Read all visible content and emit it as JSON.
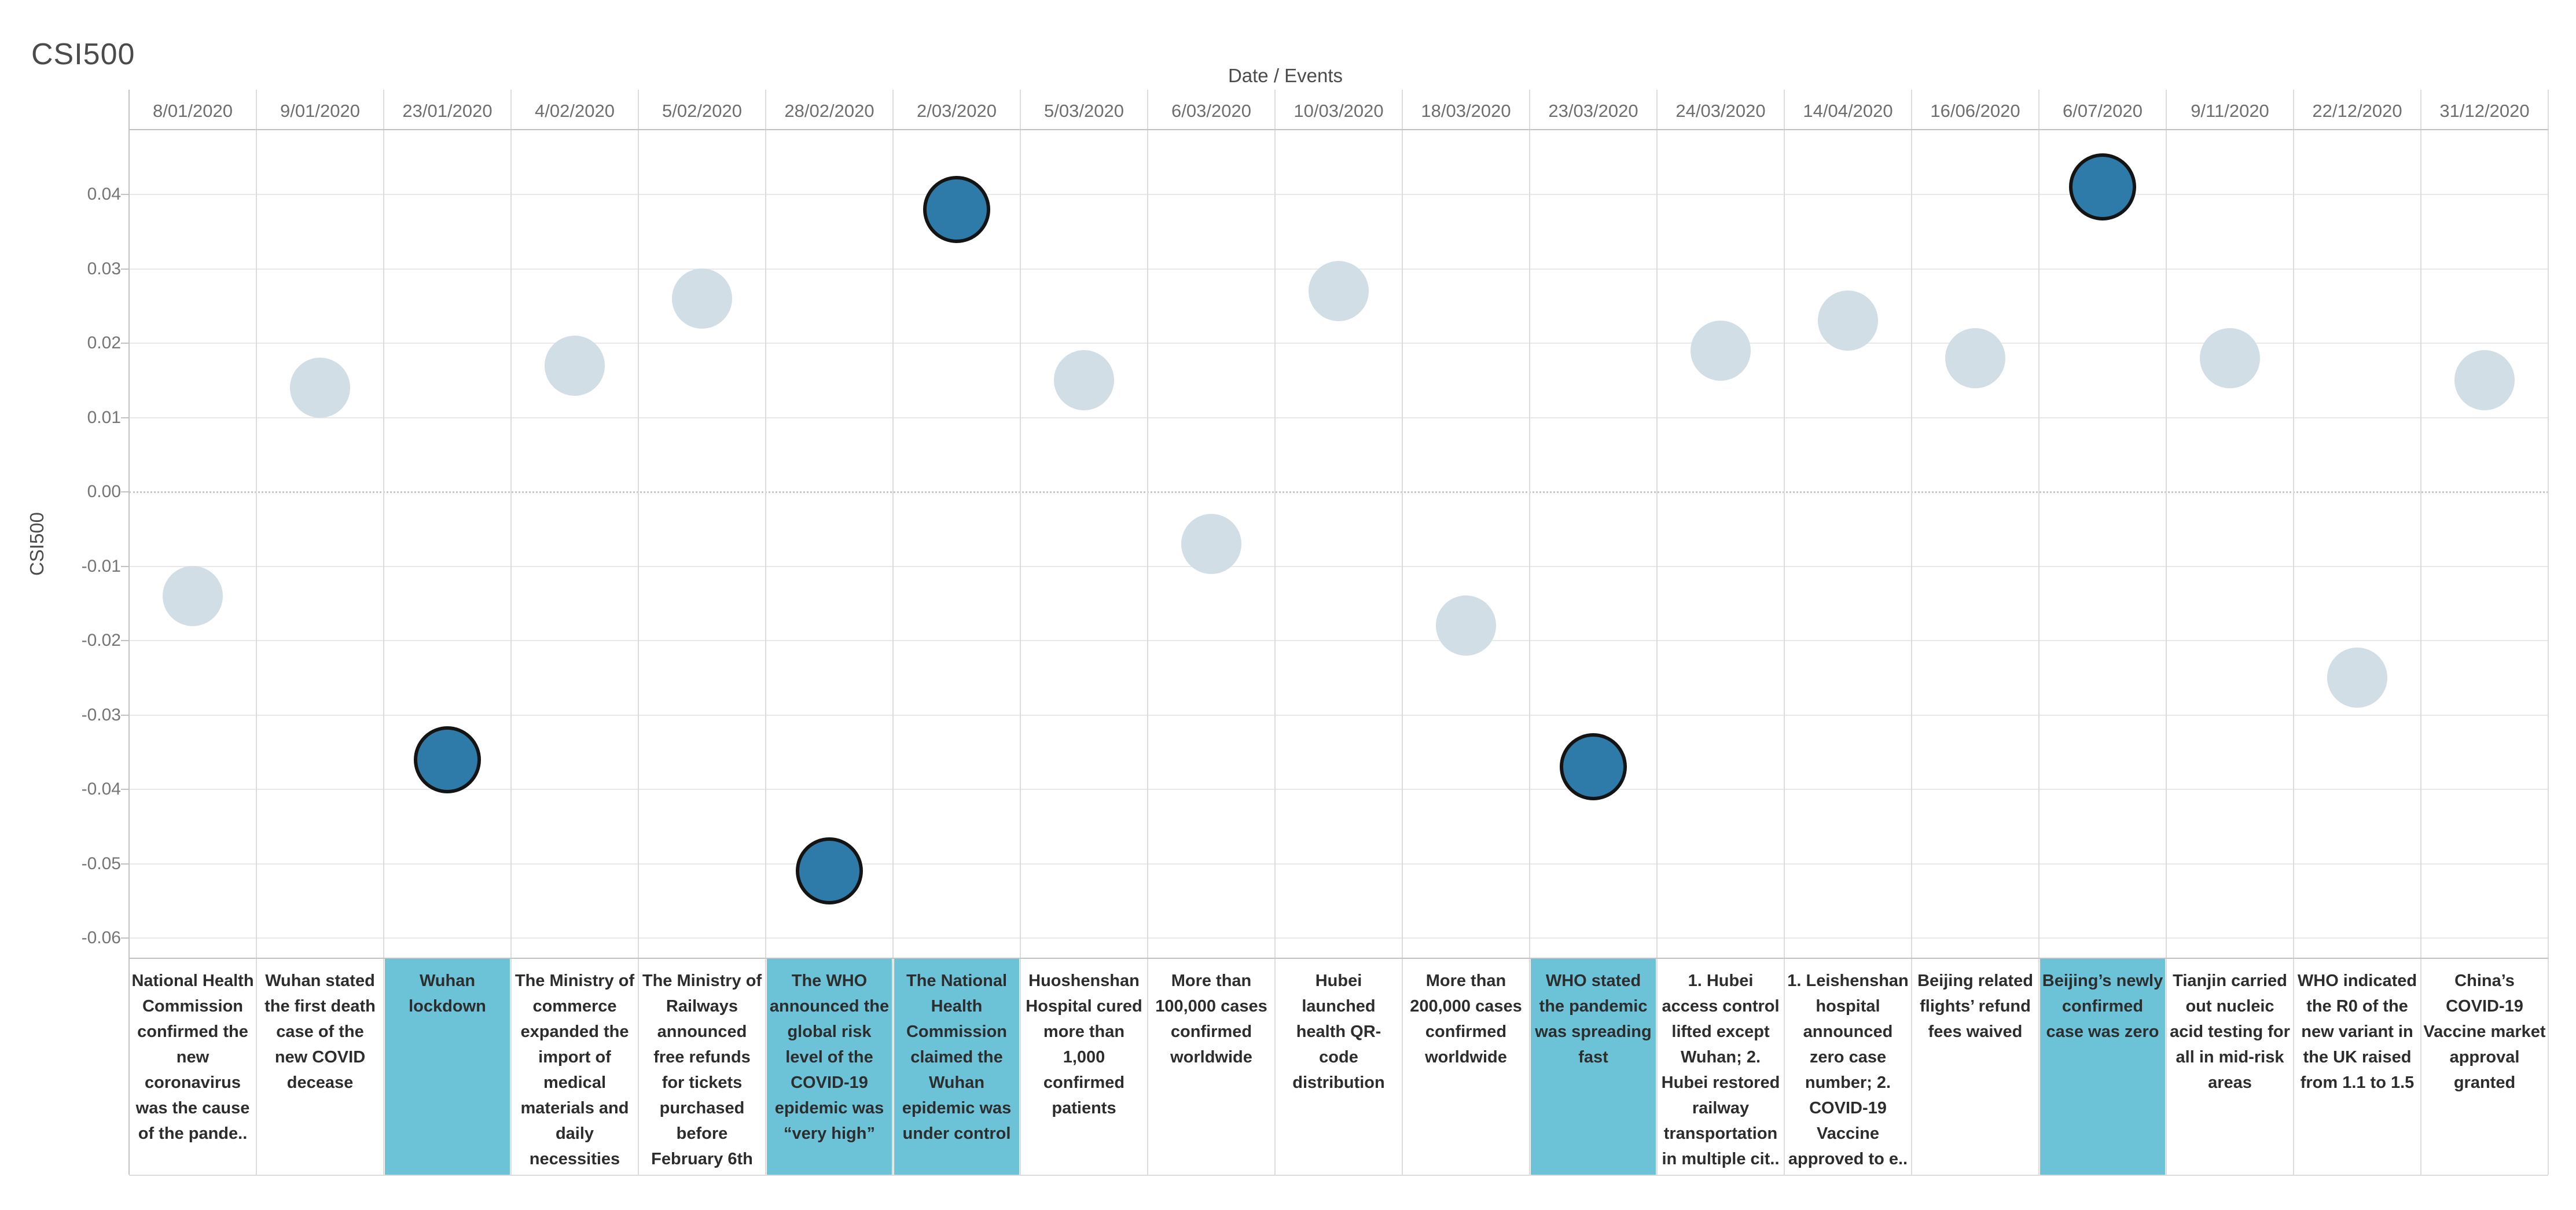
{
  "title": "CSI500",
  "x_axis_title": "Date / Events",
  "y_axis_title": "CSI500",
  "colors": {
    "highlight_cell_teal": "#6cc3d8",
    "dot_light": "#d2dee6",
    "dot_dark": "#2e7aa8",
    "dot_dark_stroke": "#141414",
    "grid": "#e9e9e9",
    "zero_line": "#c9c9c9",
    "column_separator": "#dcdcdc",
    "frame": "#c2c2c2",
    "header_text": "#6e6e6e",
    "tick_text": "#757575",
    "event_text": "#2d2d2d",
    "title_text": "#4b4b4b"
  },
  "chart_data": {
    "type": "scatter",
    "title": "CSI500",
    "xlabel": "Date / Events",
    "ylabel": "CSI500",
    "ylim": [
      -0.065,
      0.047
    ],
    "y_ticks": [
      "0.04",
      "0.03",
      "0.02",
      "0.01",
      "0.00",
      "-0.01",
      "-0.02",
      "-0.03",
      "-0.04",
      "-0.05",
      "-0.06"
    ],
    "grid": true,
    "zero_line_style": "dotted",
    "legend_position": "none",
    "points": [
      {
        "date": "8/01/2020",
        "value": -0.014,
        "highlighted": false,
        "event": "National Health Commission confirmed the new coronavirus was the cause of the pande.."
      },
      {
        "date": "9/01/2020",
        "value": 0.014,
        "highlighted": false,
        "event": "Wuhan stated the first death case of the new COVID decease"
      },
      {
        "date": "23/01/2020",
        "value": -0.036,
        "highlighted": true,
        "event": "Wuhan lockdown"
      },
      {
        "date": "4/02/2020",
        "value": 0.017,
        "highlighted": false,
        "event": "The Ministry of commerce expanded the import of medical materials and daily necessities"
      },
      {
        "date": "5/02/2020",
        "value": 0.026,
        "highlighted": false,
        "event": "The Ministry of Railways announced free refunds for tickets purchased before February 6th"
      },
      {
        "date": "28/02/2020",
        "value": -0.051,
        "highlighted": true,
        "event": "The WHO announced the global risk level of the COVID-19 epidemic was “very high”"
      },
      {
        "date": "2/03/2020",
        "value": 0.038,
        "highlighted": true,
        "event": "The National Health Commission claimed the Wuhan epidemic was under control"
      },
      {
        "date": "5/03/2020",
        "value": 0.015,
        "highlighted": false,
        "event": "Huoshenshan Hospital cured more than 1,000 confirmed patients"
      },
      {
        "date": "6/03/2020",
        "value": -0.007,
        "highlighted": false,
        "event": "More than 100,000 cases confirmed worldwide"
      },
      {
        "date": "10/03/2020",
        "value": 0.027,
        "highlighted": false,
        "event": "Hubei launched health QR-code distribution"
      },
      {
        "date": "18/03/2020",
        "value": -0.018,
        "highlighted": false,
        "event": "More than 200,000 cases confirmed worldwide"
      },
      {
        "date": "23/03/2020",
        "value": -0.037,
        "highlighted": true,
        "event": "WHO stated the pandemic was spreading fast"
      },
      {
        "date": "24/03/2020",
        "value": 0.019,
        "highlighted": false,
        "event": "1. Hubei access control lifted except Wuhan; 2. Hubei restored railway transportation in multiple cit.."
      },
      {
        "date": "14/04/2020",
        "value": 0.023,
        "highlighted": false,
        "event": "1. Leishenshan hospital announced zero case number; 2. COVID-19 Vaccine approved to e.."
      },
      {
        "date": "16/06/2020",
        "value": 0.018,
        "highlighted": false,
        "event": "Beijing related flights’ refund fees waived"
      },
      {
        "date": "6/07/2020",
        "value": 0.041,
        "highlighted": true,
        "event": "Beijing’s newly confirmed case was zero"
      },
      {
        "date": "9/11/2020",
        "value": 0.018,
        "highlighted": false,
        "event": "Tianjin carried out nucleic acid testing for all in mid-risk areas"
      },
      {
        "date": "22/12/2020",
        "value": -0.025,
        "highlighted": false,
        "event": "WHO indicated the R0 of the new variant in the UK raised from 1.1 to 1.5"
      },
      {
        "date": "31/12/2020",
        "value": 0.015,
        "highlighted": false,
        "event": "China’s COVID-19 Vaccine market approval granted"
      }
    ]
  }
}
